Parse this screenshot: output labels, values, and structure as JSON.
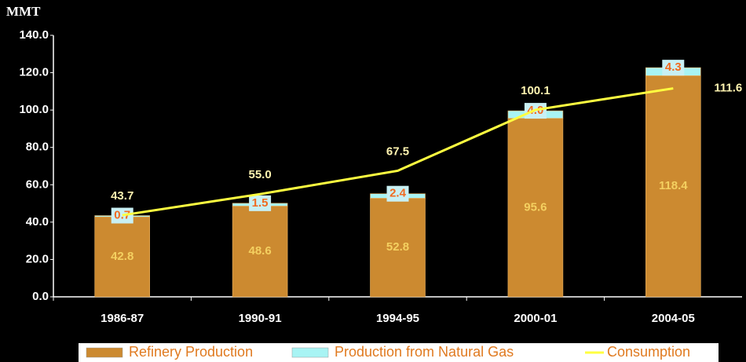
{
  "chart_data": {
    "type": "stacked_bar_line",
    "y_label": "MMT",
    "categories": [
      "1986-87",
      "1990-91",
      "1994-95",
      "2000-01",
      "2004-05"
    ],
    "series": [
      {
        "name": "Refinery Production",
        "kind": "bar",
        "color": "#CC8A30",
        "values": [
          42.8,
          48.6,
          52.8,
          95.6,
          118.4
        ]
      },
      {
        "name": "Production from Natural Gas",
        "kind": "bar",
        "color": "#A8F4F4",
        "values": [
          0.7,
          1.5,
          2.4,
          4.0,
          4.3
        ],
        "value_labels": [
          "0.7",
          "1.5",
          "2.4",
          "4.0",
          "4.3"
        ]
      },
      {
        "name": "Consumption",
        "kind": "line",
        "color": "#FFFF40",
        "values": [
          43.7,
          55.0,
          67.5,
          100.1,
          111.6
        ],
        "value_labels": [
          "43.7",
          "55.0",
          "67.5",
          "100.1",
          "111.6"
        ]
      }
    ],
    "ylim": [
      0,
      140
    ],
    "yticks": [
      {
        "value": 0,
        "label": "0.0"
      },
      {
        "value": 20,
        "label": "20.0"
      },
      {
        "value": 40,
        "label": "40.0"
      },
      {
        "value": 60,
        "label": "60.0"
      },
      {
        "value": 80,
        "label": "80.0"
      },
      {
        "value": 100,
        "label": "100.0"
      },
      {
        "value": 120,
        "label": "120.0"
      },
      {
        "value": 140,
        "label": "140.0"
      }
    ]
  }
}
